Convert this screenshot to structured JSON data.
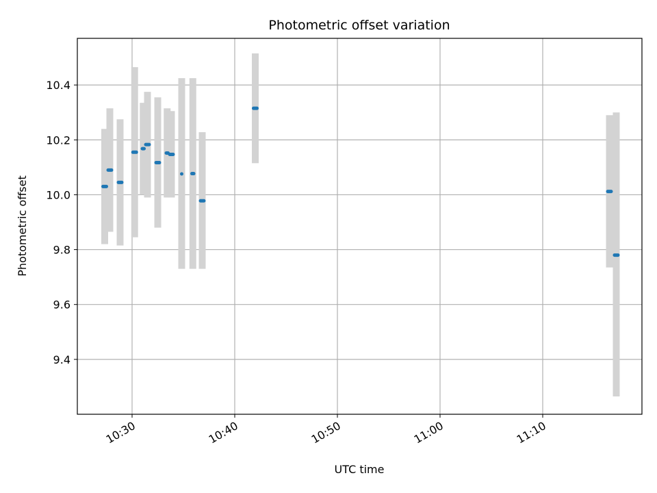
{
  "chart_data": {
    "type": "scatter",
    "title": "Photometric offset variation",
    "xlabel": "UTC time",
    "ylabel": "Photometric offset",
    "x_axis": {
      "type": "time",
      "range": [
        "10:24:40",
        "11:19:40"
      ],
      "ticks": [
        "10:30",
        "10:40",
        "10:50",
        "11:00",
        "11:10"
      ]
    },
    "y_axis": {
      "range": [
        9.2,
        10.57
      ],
      "ticks": [
        9.4,
        9.6,
        9.8,
        10.0,
        10.2,
        10.4
      ],
      "tick_labels": [
        "9.4",
        "9.6",
        "9.8",
        "10.0",
        "10.2",
        "10.4"
      ]
    },
    "grid": true,
    "series": [
      {
        "point_color": "#1f77b4",
        "errorbar_color": "#d3d3d3",
        "points": [
          {
            "t_start": "10:27:10",
            "t_end": "10:27:30",
            "y": 10.03,
            "err_low": 9.82,
            "err_high": 10.24
          },
          {
            "t_start": "10:27:40",
            "t_end": "10:28:00",
            "y": 10.09,
            "err_low": 9.865,
            "err_high": 10.315
          },
          {
            "t_start": "10:28:40",
            "t_end": "10:29:00",
            "y": 10.045,
            "err_low": 9.815,
            "err_high": 10.275
          },
          {
            "t_start": "10:30:05",
            "t_end": "10:30:25",
            "y": 10.155,
            "err_low": 9.845,
            "err_high": 10.465
          },
          {
            "t_start": "10:31:00",
            "t_end": "10:31:10",
            "y": 10.168,
            "err_low": 10.0,
            "err_high": 10.335
          },
          {
            "t_start": "10:31:20",
            "t_end": "10:31:40",
            "y": 10.183,
            "err_low": 9.99,
            "err_high": 10.375
          },
          {
            "t_start": "10:32:20",
            "t_end": "10:32:40",
            "y": 10.117,
            "err_low": 9.88,
            "err_high": 10.355
          },
          {
            "t_start": "10:33:20",
            "t_end": "10:33:30",
            "y": 10.152,
            "err_low": 9.99,
            "err_high": 10.315
          },
          {
            "t_start": "10:33:40",
            "t_end": "10:34:00",
            "y": 10.147,
            "err_low": 9.99,
            "err_high": 10.305
          },
          {
            "t_start": "10:34:50",
            "t_end": "10:34:50",
            "y": 10.076,
            "err_low": 9.73,
            "err_high": 10.425
          },
          {
            "t_start": "10:35:50",
            "t_end": "10:36:00",
            "y": 10.077,
            "err_low": 9.73,
            "err_high": 10.425
          },
          {
            "t_start": "10:36:40",
            "t_end": "10:37:00",
            "y": 9.978,
            "err_low": 9.73,
            "err_high": 10.228
          },
          {
            "t_start": "10:41:50",
            "t_end": "10:42:10",
            "y": 10.315,
            "err_low": 10.115,
            "err_high": 10.515
          },
          {
            "t_start": "11:16:20",
            "t_end": "11:16:40",
            "y": 10.012,
            "err_low": 9.735,
            "err_high": 10.29
          },
          {
            "t_start": "11:17:00",
            "t_end": "11:17:20",
            "y": 9.78,
            "err_low": 9.265,
            "err_high": 10.3
          }
        ]
      }
    ]
  }
}
